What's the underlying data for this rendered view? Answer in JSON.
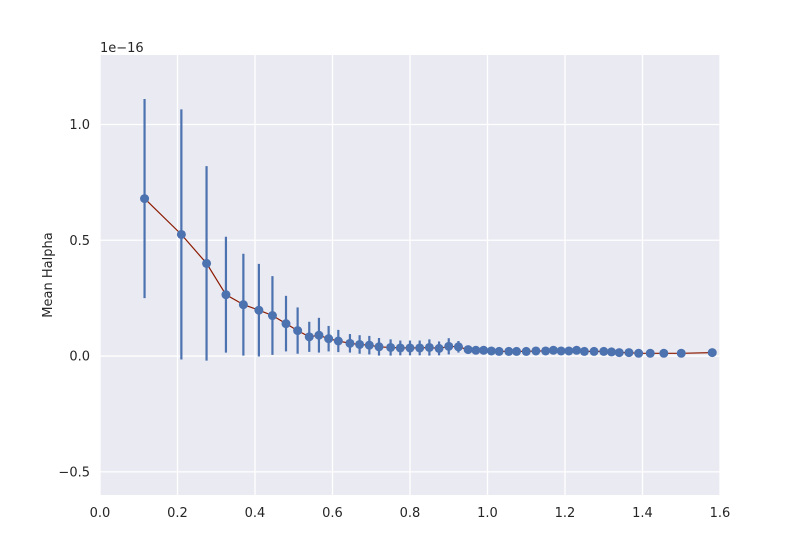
{
  "chart_data": {
    "type": "scatter",
    "title": "",
    "xlabel": "",
    "ylabel": "Mean Halpha",
    "offset_label": "1e−16",
    "xlim": [
      0.0,
      1.6
    ],
    "ylim": [
      -0.6,
      1.3
    ],
    "x_ticks": [
      0.0,
      0.2,
      0.4,
      0.6,
      0.8,
      1.0,
      1.2,
      1.4,
      1.6
    ],
    "x_tick_labels": [
      "0.0",
      "0.2",
      "0.4",
      "0.6",
      "0.8",
      "1.0",
      "1.2",
      "1.4",
      "1.6"
    ],
    "y_ticks": [
      -0.5,
      0.0,
      0.5,
      1.0
    ],
    "y_tick_labels": [
      "−0.5",
      "0.0",
      "0.5",
      "1.0"
    ],
    "grid": true,
    "colors": {
      "background": "#eaeaf2",
      "grid": "#ffffff",
      "points": "#4c72b0",
      "errorbars": "#4c72b0",
      "line": "#8b1a00"
    },
    "series": [
      {
        "x": [
          0.115,
          0.21,
          0.275,
          0.325,
          0.37,
          0.41,
          0.445,
          0.48,
          0.51,
          0.54,
          0.565,
          0.59,
          0.615,
          0.645,
          0.67,
          0.695,
          0.72,
          0.75,
          0.775,
          0.8,
          0.825,
          0.85,
          0.875,
          0.9,
          0.925,
          0.95,
          0.97,
          0.99,
          1.01,
          1.03,
          1.055,
          1.075,
          1.1,
          1.125,
          1.15,
          1.17,
          1.19,
          1.21,
          1.23,
          1.25,
          1.275,
          1.3,
          1.32,
          1.34,
          1.365,
          1.39,
          1.42,
          1.455,
          1.5,
          1.58
        ],
        "y": [
          0.68,
          0.525,
          0.4,
          0.265,
          0.222,
          0.198,
          0.175,
          0.14,
          0.11,
          0.083,
          0.09,
          0.075,
          0.065,
          0.055,
          0.05,
          0.047,
          0.04,
          0.037,
          0.035,
          0.035,
          0.035,
          0.037,
          0.033,
          0.042,
          0.04,
          0.028,
          0.025,
          0.025,
          0.022,
          0.02,
          0.02,
          0.02,
          0.02,
          0.022,
          0.022,
          0.025,
          0.022,
          0.022,
          0.025,
          0.02,
          0.02,
          0.02,
          0.018,
          0.015,
          0.015,
          0.012,
          0.012,
          0.012,
          0.012,
          0.015
        ],
        "yerr": [
          0.43,
          0.54,
          0.42,
          0.25,
          0.22,
          0.2,
          0.17,
          0.12,
          0.1,
          0.065,
          0.075,
          0.055,
          0.048,
          0.04,
          0.04,
          0.04,
          0.038,
          0.035,
          0.032,
          0.032,
          0.032,
          0.035,
          0.03,
          0.035,
          0.025,
          0.012,
          0.01,
          0.008,
          0.007,
          0.006,
          0.006,
          0.006,
          0.006,
          0.01,
          0.012,
          0.015,
          0.013,
          0.013,
          0.01,
          0.008,
          0.006,
          0.008,
          0.005,
          0.004,
          0.004,
          0.003,
          0.003,
          0.003,
          0.003,
          0.004
        ]
      }
    ]
  }
}
